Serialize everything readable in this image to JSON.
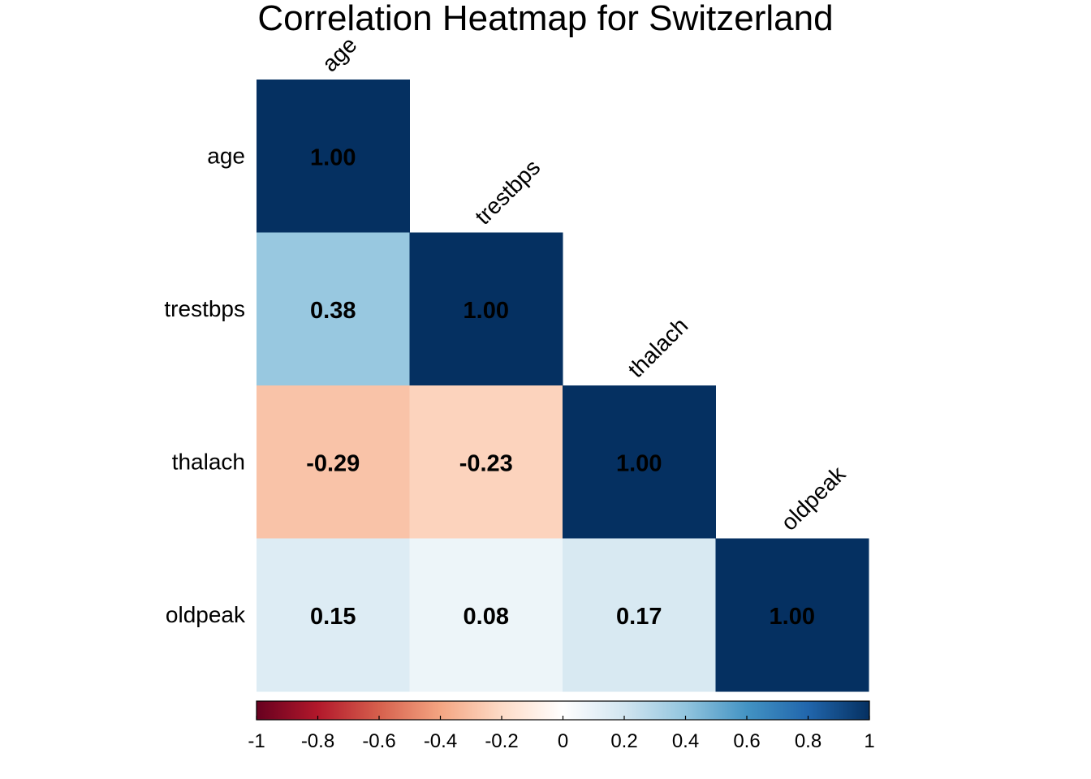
{
  "chart_data": {
    "type": "heatmap",
    "title": "Correlation Heatmap for Switzerland",
    "variables": [
      "age",
      "trestbps",
      "thalach",
      "oldpeak"
    ],
    "matrix": [
      [
        1.0,
        null,
        null,
        null
      ],
      [
        0.38,
        1.0,
        null,
        null
      ],
      [
        -0.29,
        -0.23,
        1.0,
        null
      ],
      [
        0.15,
        0.08,
        0.17,
        1.0
      ]
    ],
    "cell_labels": [
      [
        "1.00",
        "",
        "",
        ""
      ],
      [
        "0.38",
        "1.00",
        "",
        ""
      ],
      [
        "-0.29",
        "-0.23",
        "1.00",
        ""
      ],
      [
        "0.15",
        "0.08",
        "0.17",
        "1.00"
      ]
    ],
    "shape": "lower-triangle",
    "colorbar": {
      "range": [
        -1,
        1
      ],
      "ticks": [
        -1,
        -0.8,
        -0.6,
        -0.4,
        -0.2,
        0,
        0.2,
        0.4,
        0.6,
        0.8,
        1
      ],
      "tick_labels": [
        "-1",
        "-0.8",
        "-0.6",
        "-0.4",
        "-0.2",
        "0",
        "0.2",
        "0.4",
        "0.6",
        "0.8",
        "1"
      ],
      "placement": "bottom"
    },
    "colors": {
      "scale": [
        "#67001F",
        "#B2182B",
        "#D6604D",
        "#F4A582",
        "#FDDBC7",
        "#FFFFFF",
        "#D1E5F0",
        "#92C5DE",
        "#4393C3",
        "#2166AC",
        "#053061"
      ],
      "text": "#000000"
    }
  }
}
